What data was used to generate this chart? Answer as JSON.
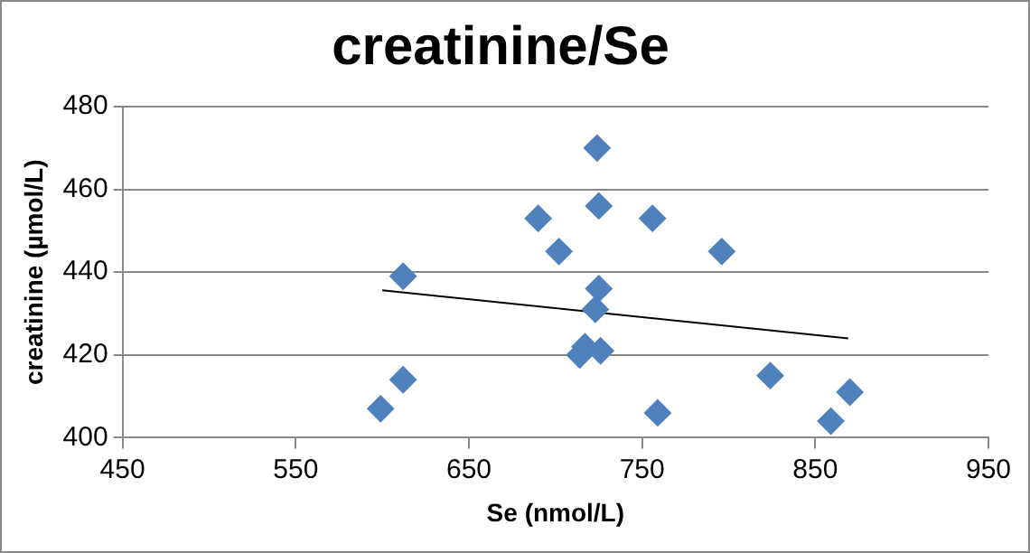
{
  "chart_data": {
    "type": "scatter",
    "title": "creatinine/Se",
    "xlabel": "Se (nmol/L)",
    "ylabel": "creatinine (µmol/L)",
    "xlim": [
      450,
      950
    ],
    "xticks": [
      450,
      550,
      650,
      750,
      850,
      950
    ],
    "ylim": [
      400,
      480
    ],
    "yticks": [
      400,
      420,
      440,
      460,
      480
    ],
    "grid": "y",
    "marker": "diamond",
    "legend": false,
    "series": [
      {
        "type": "scatter",
        "color": "#4f81bd",
        "x": [
          599,
          612,
          612,
          690,
          702,
          724,
          725,
          756,
          796,
          725,
          724,
          723,
          714,
          717,
          726,
          759,
          824,
          859,
          870
        ],
        "values": [
          407,
          414,
          439,
          453,
          445,
          470,
          456,
          453,
          445,
          436,
          null,
          431,
          420,
          422,
          421,
          406,
          415,
          404,
          411
        ]
      },
      {
        "type": "line",
        "color": "#000000",
        "marker": "none",
        "x": [
          600,
          869
        ],
        "values": [
          435.6,
          424
        ]
      }
    ]
  }
}
